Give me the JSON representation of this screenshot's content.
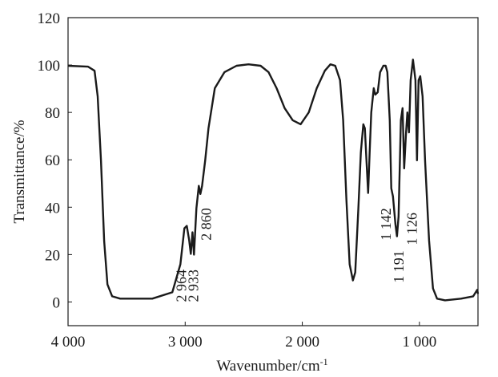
{
  "chart_data": {
    "type": "line",
    "title": "",
    "xlabel": "Wavenumber/cm",
    "xlabel_sup": "-1",
    "ylabel": "Transmittance/%",
    "xlim": [
      4000,
      500
    ],
    "ylim": [
      -10,
      120
    ],
    "x_reversed": true,
    "grid": false,
    "x_ticks": [
      4000,
      3000,
      2000,
      1000
    ],
    "x_tick_labels": [
      "4 000",
      "3 000",
      "2 000",
      "1 000"
    ],
    "y_ticks": [
      0,
      20,
      40,
      60,
      80,
      100,
      120
    ],
    "y_tick_labels": [
      "0",
      "20",
      "40",
      "60",
      "80",
      "100",
      "120"
    ],
    "line_color": "#1a1a1a",
    "series": [
      {
        "x": [
          4000,
          3829,
          3774,
          3747,
          3719,
          3692,
          3664,
          3623,
          3555,
          3281,
          3110,
          3041,
          3007,
          2986,
          2966,
          2952,
          2938,
          2925,
          2904,
          2884,
          2870,
          2856,
          2829,
          2801,
          2747,
          2664,
          2562,
          2459,
          2356,
          2288,
          2219,
          2151,
          2082,
          2014,
          1945,
          1877,
          1808,
          1760,
          1719,
          1678,
          1651,
          1623,
          1596,
          1568,
          1548,
          1521,
          1500,
          1479,
          1466,
          1452,
          1438,
          1425,
          1411,
          1390,
          1377,
          1356,
          1336,
          1308,
          1288,
          1274,
          1253,
          1240,
          1226,
          1205,
          1192,
          1178,
          1158,
          1144,
          1130,
          1116,
          1103,
          1089,
          1075,
          1055,
          1034,
          1021,
          1007,
          993,
          973,
          952,
          918,
          884,
          849,
          781,
          644,
          541,
          507,
          500
        ],
        "y": [
          99.7,
          99.3,
          97.6,
          86.8,
          59.8,
          25.7,
          7.4,
          2.4,
          1.4,
          1.4,
          4.1,
          15.9,
          31.1,
          32.1,
          26,
          20.3,
          29.4,
          20,
          39.5,
          49,
          45.6,
          49,
          59.8,
          73.3,
          90.2,
          97,
          99.7,
          100.3,
          99.7,
          97,
          90.2,
          81.8,
          76.7,
          75,
          80,
          90.2,
          97.6,
          100.3,
          99.7,
          93.6,
          76.7,
          42.9,
          15.9,
          9.1,
          12.5,
          39.5,
          63.2,
          75,
          73.3,
          59.8,
          46,
          63.2,
          80,
          90.2,
          87.5,
          88.5,
          96.9,
          99.7,
          99.7,
          97,
          76.7,
          48,
          44.6,
          32.8,
          27.7,
          36,
          76.7,
          81.8,
          56.4,
          70,
          80,
          71.6,
          93.6,
          102.3,
          93.6,
          59.8,
          93.6,
          95.3,
          86.8,
          59.8,
          26,
          5.7,
          1.4,
          0.7,
          1.4,
          2.4,
          5.1,
          3.4
        ]
      }
    ],
    "annotations": [
      {
        "label": "2 964",
        "x": 2990,
        "y": 0
      },
      {
        "label": "2 933",
        "x": 2890,
        "y": 0
      },
      {
        "label": "2 860",
        "x": 2780,
        "y": 26
      },
      {
        "label": "1 142",
        "x": 1245,
        "y": 26
      },
      {
        "label": "1 191",
        "x": 1135,
        "y": 8
      },
      {
        "label": "1 126",
        "x": 1022,
        "y": 24
      }
    ]
  }
}
